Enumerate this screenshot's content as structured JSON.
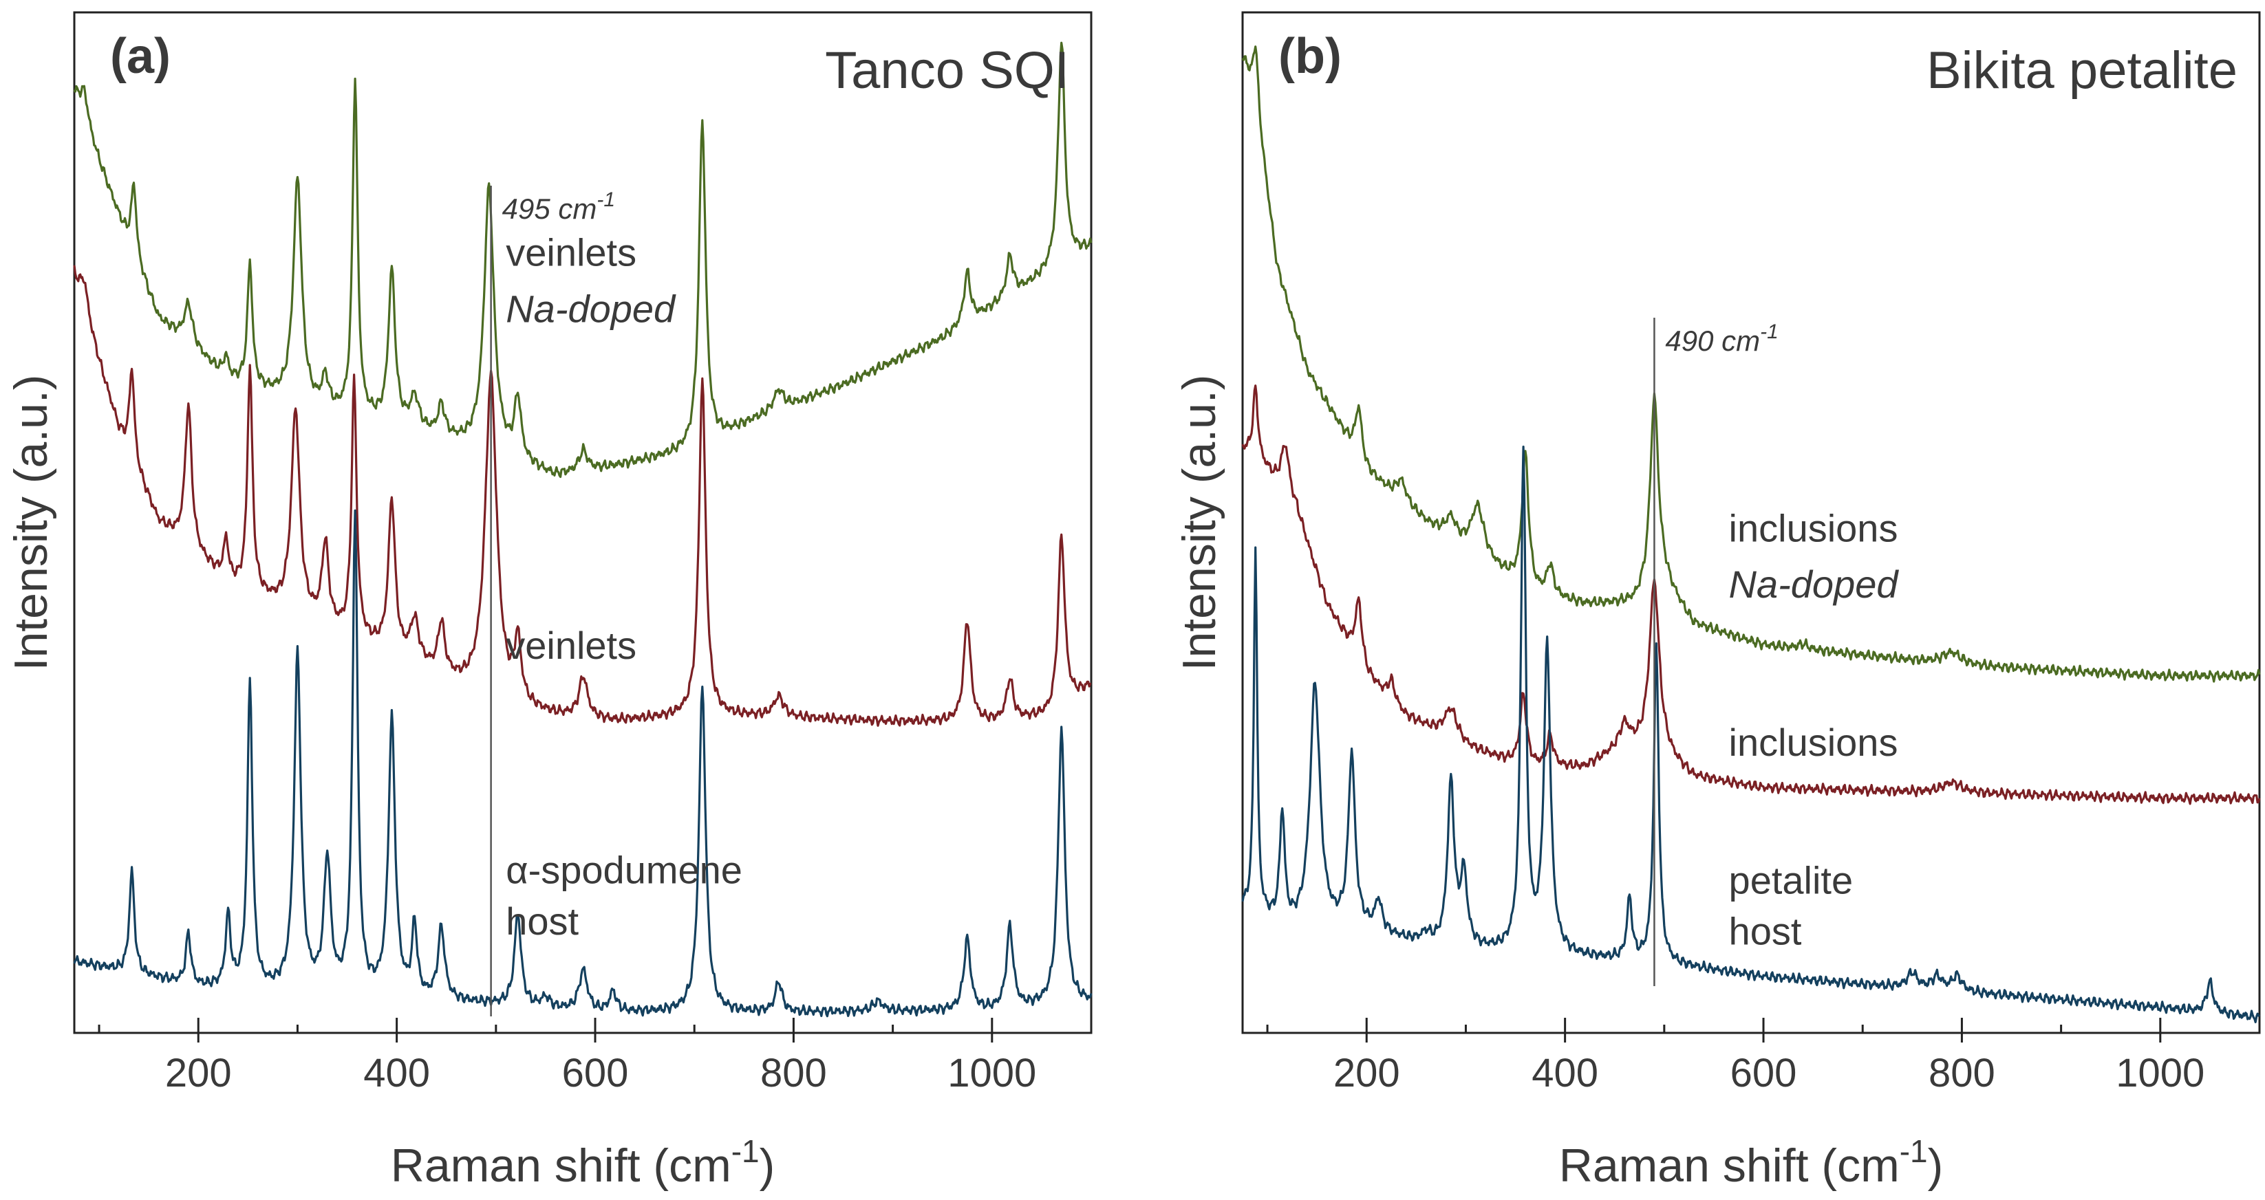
{
  "chart_data": [
    {
      "type": "line",
      "panel_label": "(a)",
      "title": "Tanco SQI",
      "xlabel": "Raman shift (cm",
      "xlabel_sup": "-1",
      "xlabel_end": ")",
      "ylabel": "Intensity (a.u.)",
      "xlim": [
        75,
        1100
      ],
      "ylim": [
        0,
        100
      ],
      "x_ticks": [
        200,
        400,
        600,
        800,
        1000
      ],
      "x_minor_ticks": [
        100,
        300,
        500,
        700,
        900,
        1100
      ],
      "x_tick_labels": [
        "200",
        "400",
        "600",
        "800",
        "1000"
      ],
      "grid": false,
      "reference_line": {
        "x": 495,
        "label": "495 cm",
        "label_sup": "-1"
      },
      "series": [
        {
          "color": "#4b6b22",
          "label_lines": [
            "veinlets",
            "Na-doped"
          ],
          "label_italic": [
            false,
            true
          ],
          "label_x": 510,
          "label_y": [
            76.5,
            71
          ],
          "baseline": [
            [
              75,
              92
            ],
            [
              120,
              80
            ],
            [
              160,
              70
            ],
            [
              230,
              64
            ],
            [
              320,
              61
            ],
            [
              420,
              59
            ],
            [
              500,
              56.5
            ],
            [
              560,
              54.5
            ],
            [
              620,
              55.5
            ],
            [
              700,
              57
            ],
            [
              760,
              60
            ],
            [
              850,
              63.5
            ],
            [
              950,
              68
            ],
            [
              1050,
              74
            ],
            [
              1100,
              77
            ]
          ],
          "peaks": [
            [
              85,
              3,
              5
            ],
            [
              135,
              7,
              3
            ],
            [
              190,
              4,
              5
            ],
            [
              228,
              2,
              3
            ],
            [
              252,
              12,
              3
            ],
            [
              300,
              22,
              5
            ],
            [
              328,
              3,
              4
            ],
            [
              358,
              33,
              3
            ],
            [
              395,
              15,
              4
            ],
            [
              418,
              3,
              5
            ],
            [
              445,
              3,
              4
            ],
            [
              493,
              26,
              6
            ],
            [
              522,
              6,
              4
            ],
            [
              588,
              2,
              5
            ],
            [
              708,
              32,
              4
            ],
            [
              785,
              2,
              6
            ],
            [
              975,
              5,
              4
            ],
            [
              1018,
              4,
              4
            ],
            [
              1070,
              22,
              4
            ]
          ]
        },
        {
          "color": "#7b2024",
          "label_lines": [
            "veinlets"
          ],
          "label_italic": [
            false
          ],
          "label_x": 510,
          "label_y": [
            38
          ],
          "baseline": [
            [
              75,
              74
            ],
            [
              120,
              59
            ],
            [
              160,
              50
            ],
            [
              230,
              44
            ],
            [
              320,
              40
            ],
            [
              420,
              36
            ],
            [
              500,
              32
            ],
            [
              560,
              31
            ],
            [
              620,
              30.5
            ],
            [
              700,
              31
            ],
            [
              760,
              31
            ],
            [
              900,
              30.5
            ],
            [
              1000,
              30.5
            ],
            [
              1060,
              31
            ],
            [
              1100,
              34
            ]
          ],
          "peaks": [
            [
              85,
              3,
              5
            ],
            [
              133,
              9,
              3
            ],
            [
              190,
              14,
              4
            ],
            [
              228,
              4,
              3
            ],
            [
              252,
              22,
              3
            ],
            [
              298,
              20,
              5
            ],
            [
              328,
              8,
              4
            ],
            [
              357,
              25,
              3
            ],
            [
              395,
              15,
              4
            ],
            [
              418,
              4,
              5
            ],
            [
              445,
              5,
              4
            ],
            [
              495,
              32,
              7
            ],
            [
              522,
              6,
              4
            ],
            [
              588,
              4,
              5
            ],
            [
              708,
              33,
              4
            ],
            [
              785,
              2,
              6
            ],
            [
              975,
              10,
              4
            ],
            [
              1018,
              4,
              4
            ],
            [
              1070,
              17,
              4
            ]
          ]
        },
        {
          "color": "#14405e",
          "label_lines": [
            "α-spodumene",
            "host"
          ],
          "label_italic": [
            false,
            false
          ],
          "label_x": 510,
          "label_y": [
            16,
            11
          ],
          "baseline": [
            [
              75,
              7
            ],
            [
              200,
              4.5
            ],
            [
              400,
              3.5
            ],
            [
              600,
              2
            ],
            [
              800,
              2
            ],
            [
              1000,
              2.2
            ],
            [
              1100,
              3
            ]
          ],
          "peaks": [
            [
              133,
              10,
              3
            ],
            [
              190,
              5,
              3
            ],
            [
              230,
              7,
              3
            ],
            [
              252,
              30,
              3
            ],
            [
              300,
              33,
              4
            ],
            [
              330,
              13,
              4
            ],
            [
              358,
              47,
              3
            ],
            [
              395,
              27,
              4
            ],
            [
              418,
              7,
              3
            ],
            [
              445,
              7,
              4
            ],
            [
              522,
              9,
              4
            ],
            [
              550,
              1,
              5
            ],
            [
              588,
              4,
              5
            ],
            [
              618,
              2,
              4
            ],
            [
              708,
              32,
              4
            ],
            [
              785,
              3,
              4
            ],
            [
              885,
              1,
              6
            ],
            [
              975,
              7,
              4
            ],
            [
              1018,
              8,
              4
            ],
            [
              1070,
              27,
              4
            ]
          ]
        }
      ]
    },
    {
      "type": "line",
      "panel_label": "(b)",
      "title": "Bikita petalite",
      "xlabel": "Raman shift (cm",
      "xlabel_sup": "-1",
      "xlabel_end": ")",
      "ylabel": "Intensity (a.u.)",
      "xlim": [
        75,
        1100
      ],
      "ylim": [
        0,
        100
      ],
      "x_ticks": [
        200,
        400,
        600,
        800,
        1000
      ],
      "x_minor_ticks": [
        100,
        300,
        500,
        700,
        900,
        1100
      ],
      "x_tick_labels": [
        "200",
        "400",
        "600",
        "800",
        "1000"
      ],
      "grid": false,
      "reference_line": {
        "x": 490,
        "label": "490 cm",
        "label_sup": "-1"
      },
      "series": [
        {
          "color": "#4b6b22",
          "label_lines": [
            "inclusions",
            "Na-doped"
          ],
          "label_italic": [
            false,
            true
          ],
          "label_x": 565,
          "label_y": [
            49.5,
            44
          ],
          "baseline": [
            [
              78,
              95
            ],
            [
              90,
              90
            ],
            [
              110,
              75
            ],
            [
              140,
              65
            ],
            [
              200,
              55
            ],
            [
              260,
              50
            ],
            [
              320,
              46
            ],
            [
              370,
              43
            ],
            [
              420,
              42
            ],
            [
              470,
              42
            ],
            [
              500,
              44
            ],
            [
              530,
              40
            ],
            [
              600,
              38
            ],
            [
              700,
              37
            ],
            [
              800,
              36
            ],
            [
              900,
              35.5
            ],
            [
              1000,
              35
            ],
            [
              1100,
              35
            ]
          ],
          "peaks": [
            [
              88,
              6,
              3
            ],
            [
              192,
              5,
              4
            ],
            [
              235,
              2,
              6
            ],
            [
              285,
              2,
              6
            ],
            [
              312,
              5,
              8
            ],
            [
              360,
              13,
              4
            ],
            [
              385,
              3,
              4
            ],
            [
              490,
              19,
              5
            ],
            [
              640,
              0.5,
              6
            ],
            [
              790,
              1.2,
              12
            ]
          ]
        },
        {
          "color": "#7b2024",
          "label_lines": [
            "inclusions"
          ],
          "label_italic": [
            false
          ],
          "label_x": 565,
          "label_y": [
            28.5
          ],
          "baseline": [
            [
              78,
              57
            ],
            [
              100,
              55
            ],
            [
              130,
              51
            ],
            [
              160,
              42
            ],
            [
              200,
              35
            ],
            [
              240,
              31
            ],
            [
              300,
              28
            ],
            [
              360,
              26
            ],
            [
              420,
              26
            ],
            [
              460,
              28
            ],
            [
              500,
              27
            ],
            [
              530,
              25
            ],
            [
              600,
              24
            ],
            [
              800,
              23.5
            ],
            [
              1000,
              23
            ],
            [
              1100,
              23
            ]
          ],
          "peaks": [
            [
              88,
              7,
              3
            ],
            [
              118,
              5,
              5
            ],
            [
              192,
              6,
              4
            ],
            [
              225,
              2,
              4
            ],
            [
              285,
              3,
              8
            ],
            [
              358,
              7,
              4
            ],
            [
              385,
              3,
              4
            ],
            [
              460,
              2,
              6
            ],
            [
              490,
              17,
              6
            ],
            [
              790,
              1,
              12
            ]
          ]
        },
        {
          "color": "#14405e",
          "label_lines": [
            "petalite",
            "host"
          ],
          "label_italic": [
            false,
            false
          ],
          "label_x": 565,
          "label_y": [
            15,
            10
          ],
          "baseline": [
            [
              78,
              12
            ],
            [
              120,
              10
            ],
            [
              200,
              10
            ],
            [
              260,
              8.5
            ],
            [
              320,
              8
            ],
            [
              400,
              7.5
            ],
            [
              470,
              7
            ],
            [
              520,
              6.5
            ],
            [
              600,
              5.5
            ],
            [
              800,
              4
            ],
            [
              1000,
              2.5
            ],
            [
              1100,
              1.5
            ]
          ],
          "peaks": [
            [
              88,
              36,
              2
            ],
            [
              115,
              11,
              3
            ],
            [
              148,
              24,
              6
            ],
            [
              185,
              17,
              4
            ],
            [
              212,
              3,
              4
            ],
            [
              260,
              1,
              6
            ],
            [
              285,
              16,
              4
            ],
            [
              298,
              7,
              4
            ],
            [
              358,
              49,
              3
            ],
            [
              382,
              30,
              4
            ],
            [
              465,
              6,
              3
            ],
            [
              492,
              31,
              3
            ],
            [
              750,
              1.5,
              6
            ],
            [
              775,
              1.3,
              6
            ],
            [
              795,
              1.5,
              6
            ],
            [
              1050,
              3,
              4
            ]
          ]
        }
      ]
    }
  ]
}
